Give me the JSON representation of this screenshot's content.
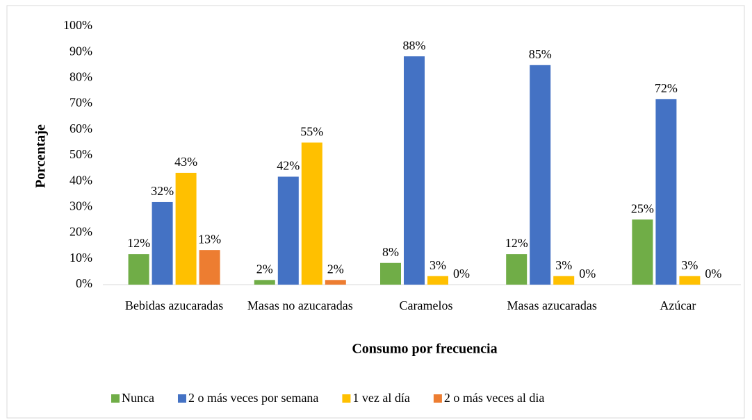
{
  "chart_data": {
    "type": "bar",
    "x_label": "Consumo por frecuencia",
    "y_label": "Porcentaje",
    "categories": [
      "Bebidas azucaradas",
      "Masas no azucaradas",
      "Caramelos",
      "Masas azucaradas",
      "Azúcar"
    ],
    "series": [
      {
        "name": "Nunca",
        "color": "#70ad47",
        "values": [
          11.8,
          1.8,
          8.4,
          11.8,
          25.2
        ],
        "value_labels": [
          "12%",
          "2%",
          "8%",
          "12%",
          "25%"
        ]
      },
      {
        "name": "2 o más veces por semana",
        "color": "#4472c4",
        "values": [
          32,
          41.8,
          88.4,
          85,
          71.8
        ],
        "value_labels": [
          "32%",
          "42%",
          "88%",
          "85%",
          "72%"
        ]
      },
      {
        "name": "1 vez al día",
        "color": "#ffc000",
        "values": [
          43.3,
          55,
          3.3,
          3.3,
          3.3
        ],
        "value_labels": [
          "43%",
          "55%",
          "3%",
          "3%",
          "3%"
        ]
      },
      {
        "name": "2 o más veces al dia",
        "color": "#ed7d31",
        "values": [
          13.4,
          1.8,
          0,
          0,
          0
        ],
        "value_labels": [
          "13%",
          "2%",
          "0%",
          "0%",
          "0%"
        ]
      }
    ],
    "ylim": [
      0,
      100
    ],
    "yticks": [
      {
        "value": 0,
        "label": "0%"
      },
      {
        "value": 10,
        "label": "10%"
      },
      {
        "value": 20,
        "label": "20%"
      },
      {
        "value": 30,
        "label": "30%"
      },
      {
        "value": 40,
        "label": "40%"
      },
      {
        "value": 50,
        "label": "50%"
      },
      {
        "value": 60,
        "label": "60%"
      },
      {
        "value": 70,
        "label": "70%"
      },
      {
        "value": 80,
        "label": "80%"
      },
      {
        "value": 90,
        "label": "90%"
      },
      {
        "value": 100,
        "label": "100%"
      }
    ],
    "grid": false,
    "legend": "bottom"
  }
}
